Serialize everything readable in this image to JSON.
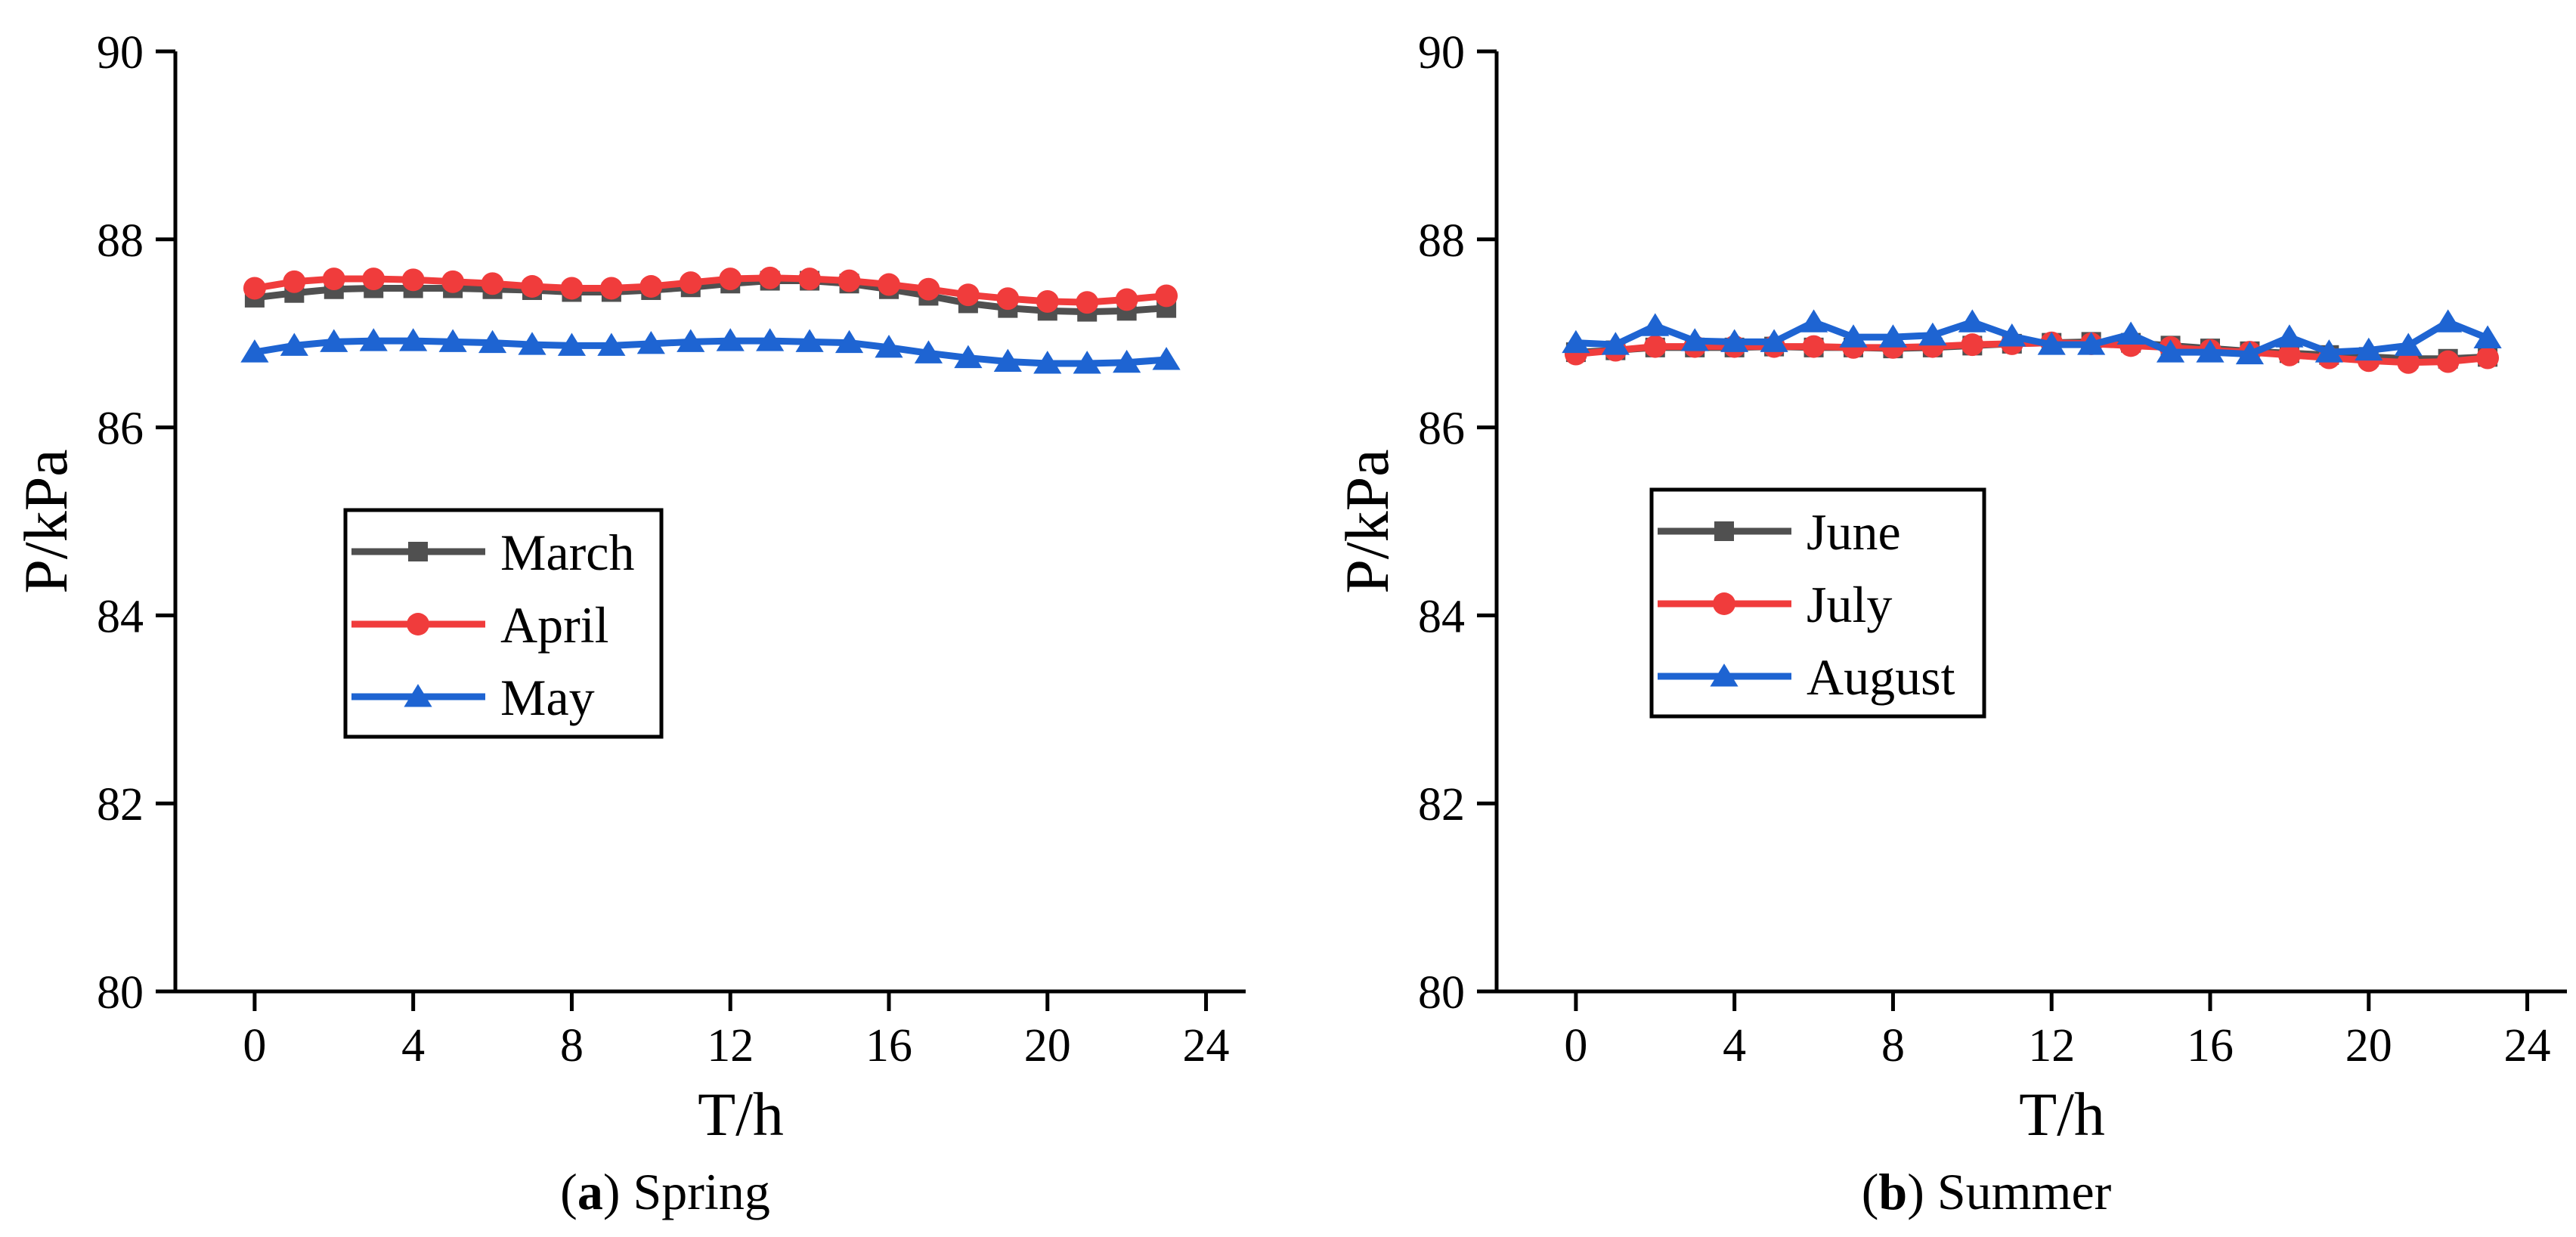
{
  "chart_data": [
    {
      "type": "line",
      "caption_letter": "a",
      "caption_text": "Spring",
      "xlabel": "T/h",
      "ylabel": "P/kPa",
      "xlim": [
        -2,
        25
      ],
      "ylim": [
        80,
        90
      ],
      "xticks": [
        0,
        4,
        8,
        12,
        16,
        20,
        24
      ],
      "yticks": [
        80,
        82,
        84,
        86,
        88,
        90
      ],
      "grid": false,
      "legend_position": "middle-left",
      "x": [
        0,
        1,
        2,
        3,
        4,
        5,
        6,
        7,
        8,
        9,
        10,
        11,
        12,
        13,
        14,
        15,
        16,
        17,
        18,
        19,
        20,
        21,
        22,
        23
      ],
      "series": [
        {
          "name": "March",
          "color": "#505050",
          "marker": "square",
          "values": [
            87.38,
            87.43,
            87.47,
            87.48,
            87.48,
            87.48,
            87.47,
            87.46,
            87.44,
            87.44,
            87.46,
            87.49,
            87.53,
            87.56,
            87.56,
            87.53,
            87.47,
            87.4,
            87.32,
            87.27,
            87.24,
            87.23,
            87.24,
            87.27
          ]
        },
        {
          "name": "April",
          "color": "#F03C3C",
          "marker": "circle",
          "values": [
            87.48,
            87.55,
            87.58,
            87.58,
            87.57,
            87.55,
            87.53,
            87.5,
            87.48,
            87.48,
            87.5,
            87.54,
            87.58,
            87.59,
            87.58,
            87.56,
            87.52,
            87.47,
            87.41,
            87.37,
            87.34,
            87.33,
            87.36,
            87.4
          ]
        },
        {
          "name": "May",
          "color": "#1E64D2",
          "marker": "triangle",
          "values": [
            86.8,
            86.87,
            86.91,
            86.92,
            86.92,
            86.91,
            86.9,
            86.88,
            86.87,
            86.87,
            86.89,
            86.91,
            86.92,
            86.92,
            86.91,
            86.9,
            86.85,
            86.79,
            86.74,
            86.7,
            86.68,
            86.68,
            86.69,
            86.72
          ]
        }
      ]
    },
    {
      "type": "line",
      "caption_letter": "b",
      "caption_text": "Summer",
      "xlabel": "T/h",
      "ylabel": "P/kPa",
      "xlim": [
        -2,
        25
      ],
      "ylim": [
        80,
        90
      ],
      "xticks": [
        0,
        4,
        8,
        12,
        16,
        20,
        24
      ],
      "yticks": [
        80,
        82,
        84,
        86,
        88,
        90
      ],
      "grid": false,
      "legend_position": "middle-left",
      "x": [
        0,
        1,
        2,
        3,
        4,
        5,
        6,
        7,
        8,
        9,
        10,
        11,
        12,
        13,
        14,
        15,
        16,
        17,
        18,
        19,
        20,
        21,
        22,
        23
      ],
      "series": [
        {
          "name": "June",
          "color": "#505050",
          "marker": "square",
          "values": [
            86.8,
            86.82,
            86.85,
            86.85,
            86.85,
            86.86,
            86.85,
            86.85,
            86.84,
            86.85,
            86.87,
            86.89,
            86.9,
            86.91,
            86.9,
            86.87,
            86.84,
            86.81,
            86.79,
            86.77,
            86.75,
            86.73,
            86.73,
            86.75
          ]
        },
        {
          "name": "July",
          "color": "#F03C3C",
          "marker": "circle",
          "values": [
            86.78,
            86.82,
            86.86,
            86.86,
            86.86,
            86.86,
            86.86,
            86.85,
            86.85,
            86.86,
            86.88,
            86.89,
            86.9,
            86.89,
            86.87,
            86.85,
            86.82,
            86.8,
            86.77,
            86.74,
            86.71,
            86.69,
            86.7,
            86.74
          ]
        },
        {
          "name": "August",
          "color": "#1E64D2",
          "marker": "triangle",
          "values": [
            86.9,
            86.88,
            87.08,
            86.92,
            86.91,
            86.91,
            87.12,
            86.96,
            86.96,
            86.98,
            87.12,
            86.97,
            86.88,
            86.88,
            86.99,
            86.8,
            86.8,
            86.78,
            86.96,
            86.8,
            86.82,
            86.87,
            87.12,
            86.95
          ]
        }
      ]
    }
  ]
}
